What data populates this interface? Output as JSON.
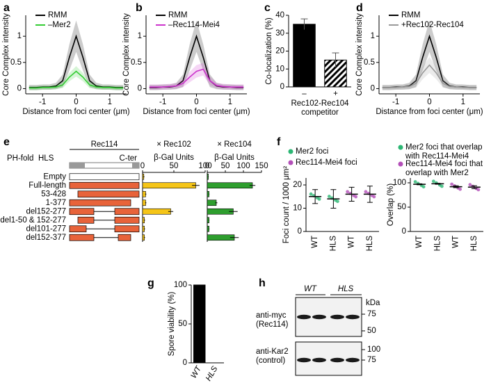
{
  "chart_data": [
    {
      "panel": "a",
      "type": "line",
      "ylabel": "Core Complex intensity",
      "xlabel": "Distance from foci center (μm)",
      "x": [
        -1.4,
        -1.2,
        -1,
        -0.8,
        -0.6,
        -0.4,
        -0.2,
        0,
        0.2,
        0.4,
        0.6,
        0.8,
        1,
        1.2,
        1.4
      ],
      "series": [
        {
          "name": "RMM",
          "color": "#000000",
          "values": [
            0.02,
            0.02,
            0.03,
            0.03,
            0.05,
            0.15,
            0.6,
            1,
            0.6,
            0.15,
            0.05,
            0.03,
            0.03,
            0.02,
            0.02
          ],
          "sd": [
            0.05,
            0.05,
            0.05,
            0.05,
            0.06,
            0.12,
            0.25,
            0.3,
            0.25,
            0.12,
            0.06,
            0.05,
            0.05,
            0.05,
            0.05
          ]
        },
        {
          "name": "–Mer2",
          "color": "#33cc33",
          "values": [
            0.01,
            0.01,
            0.02,
            0.02,
            0.03,
            0.07,
            0.22,
            0.33,
            0.22,
            0.07,
            0.03,
            0.02,
            0.02,
            0.01,
            0.01
          ],
          "sd": [
            0.04,
            0.04,
            0.04,
            0.04,
            0.04,
            0.06,
            0.08,
            0.1,
            0.08,
            0.06,
            0.04,
            0.04,
            0.04,
            0.04,
            0.04
          ]
        }
      ],
      "xlim": [
        -1.5,
        1.5
      ],
      "xticks": [
        -1,
        0,
        1
      ],
      "ylim": [
        -0.1,
        1.4
      ],
      "yticks": [
        0,
        0.5,
        1
      ]
    },
    {
      "panel": "b",
      "type": "line",
      "ylabel": "Core Complex intensity",
      "xlabel": "Distance from foci center (μm)",
      "x": [
        -1.4,
        -1.2,
        -1,
        -0.8,
        -0.6,
        -0.4,
        -0.2,
        0,
        0.2,
        0.4,
        0.6,
        0.8,
        1,
        1.2,
        1.4
      ],
      "series": [
        {
          "name": "RMM",
          "color": "#000000",
          "values": [
            0.02,
            0.02,
            0.03,
            0.03,
            0.05,
            0.15,
            0.6,
            1,
            0.6,
            0.15,
            0.05,
            0.03,
            0.03,
            0.02,
            0.02
          ],
          "sd": [
            0.05,
            0.05,
            0.05,
            0.05,
            0.06,
            0.12,
            0.25,
            0.3,
            0.25,
            0.12,
            0.06,
            0.05,
            0.05,
            0.05,
            0.05
          ]
        },
        {
          "name": "–Rec114-Mei4",
          "color": "#cc33cc",
          "values": [
            0.03,
            0.03,
            0.03,
            0.04,
            0.05,
            0.1,
            0.22,
            0.33,
            0.37,
            0.15,
            0.06,
            0.04,
            0.03,
            0.03,
            0.03
          ],
          "sd": [
            0.05,
            0.05,
            0.05,
            0.05,
            0.05,
            0.07,
            0.1,
            0.12,
            0.12,
            0.08,
            0.05,
            0.05,
            0.05,
            0.05,
            0.05
          ]
        }
      ],
      "xlim": [
        -1.5,
        1.5
      ],
      "xticks": [
        -1,
        0,
        1
      ],
      "ylim": [
        -0.1,
        1.4
      ],
      "yticks": [
        0,
        0.5,
        1
      ]
    },
    {
      "panel": "c",
      "type": "bar",
      "ylabel": "Co-localization (%)",
      "xlabel": "Rec102-Rec104 competitor",
      "categories": [
        "–",
        "+"
      ],
      "values": [
        35,
        15
      ],
      "errors": [
        3,
        4
      ],
      "fills": [
        "solid",
        "hatch"
      ],
      "color": "#000000",
      "ylim": [
        0,
        40
      ],
      "yticks": [
        0,
        10,
        20,
        30,
        40
      ]
    },
    {
      "panel": "d",
      "type": "line",
      "ylabel": "Core Complex intensity",
      "xlabel": "Distance from foci center (μm)",
      "x": [
        -1.4,
        -1.2,
        -1,
        -0.8,
        -0.6,
        -0.4,
        -0.2,
        0,
        0.2,
        0.4,
        0.6,
        0.8,
        1,
        1.2,
        1.4
      ],
      "series": [
        {
          "name": "RMM",
          "color": "#000000",
          "values": [
            0.02,
            0.02,
            0.03,
            0.03,
            0.05,
            0.15,
            0.6,
            1,
            0.6,
            0.15,
            0.05,
            0.03,
            0.03,
            0.02,
            0.02
          ],
          "sd": [
            0.05,
            0.05,
            0.05,
            0.05,
            0.06,
            0.12,
            0.25,
            0.3,
            0.25,
            0.12,
            0.06,
            0.05,
            0.05,
            0.05,
            0.05
          ]
        },
        {
          "name": "+Rec102-Rec104",
          "color": "#999999",
          "values": [
            0.02,
            0.02,
            0.02,
            0.03,
            0.04,
            0.1,
            0.3,
            0.45,
            0.3,
            0.1,
            0.04,
            0.03,
            0.02,
            0.02,
            0.02
          ],
          "sd": [
            0.04,
            0.04,
            0.04,
            0.04,
            0.05,
            0.08,
            0.12,
            0.15,
            0.12,
            0.08,
            0.05,
            0.04,
            0.04,
            0.04,
            0.04
          ]
        }
      ],
      "xlim": [
        -1.5,
        1.5
      ],
      "xticks": [
        -1,
        0,
        1
      ],
      "ylim": [
        -0.1,
        1.4
      ],
      "yticks": [
        0,
        0.5,
        1
      ]
    },
    {
      "panel": "e",
      "type": "hbar",
      "protein": "Rec114",
      "domains": [
        "PH-fold",
        "HLS",
        "C-ter"
      ],
      "title": "× Rec102",
      "xlabel": "β-Gal Units",
      "categories": [
        "Empty",
        "Full-length",
        "53-428",
        "1-377",
        "del152-277",
        "del1-50 & 152-277",
        "del101-277",
        "del152-377"
      ],
      "values": [
        2,
        85,
        5,
        5,
        45,
        3,
        3,
        3
      ],
      "errors": [
        1,
        6,
        1,
        1,
        4,
        1,
        1,
        1
      ],
      "color": "#f5c518",
      "xlim": [
        0,
        100
      ],
      "xticks": [
        0,
        50,
        100
      ]
    },
    {
      "type": "hbar",
      "title": "× Rec104",
      "xlabel": "β-Gal Units",
      "values": [
        3,
        125,
        5,
        25,
        72,
        5,
        5,
        75
      ],
      "errors": [
        1,
        8,
        1,
        3,
        12,
        1,
        1,
        12
      ],
      "color": "#2e9e2e",
      "xlim": [
        0,
        150
      ],
      "xticks": [
        0,
        50,
        100,
        150
      ]
    },
    {
      "panel": "f",
      "type": "dot",
      "ylabel": "Foci count / 1000 μm²",
      "categories": [
        "WT",
        "HLS",
        "WT",
        "HLS"
      ],
      "series": [
        {
          "name": "Mer2 foci",
          "color": "#2bb673",
          "values": [
            15,
            14,
            null,
            null
          ],
          "sd": [
            3,
            4,
            null,
            null
          ]
        },
        {
          "name": "Rec114-Mei4 foci",
          "color": "#b34fb8",
          "values": [
            null,
            null,
            16,
            16
          ],
          "sd": [
            null,
            null,
            3,
            3.5
          ]
        }
      ],
      "ylim": [
        0,
        23
      ],
      "yticks": [
        0,
        10,
        20
      ]
    },
    {
      "type": "dot",
      "ylabel": "Overlap (%)",
      "categories": [
        "WT",
        "HLS",
        "WT",
        "HLS"
      ],
      "series": [
        {
          "name": "Mer2 foci that overlap with Rec114-Mei4",
          "color": "#2bb673",
          "values": [
            97,
            98,
            null,
            null
          ],
          "sd": [
            1,
            1,
            null,
            null
          ]
        },
        {
          "name": "Rec114-Mei4 foci that overlap with Mer2",
          "color": "#b34fb8",
          "values": [
            null,
            null,
            92,
            91
          ],
          "sd": [
            null,
            null,
            2,
            3
          ]
        }
      ],
      "ylim": [
        0,
        110
      ],
      "yticks": [
        0,
        50,
        100
      ]
    },
    {
      "panel": "g",
      "type": "bar",
      "ylabel": "Spore viability (%)",
      "categories": [
        "WT",
        "HLS"
      ],
      "values": [
        100,
        0
      ],
      "color": "#000000",
      "ylim": [
        0,
        100
      ],
      "yticks": [
        0,
        50,
        100
      ]
    }
  ],
  "blot": {
    "panel": "h",
    "lanes": [
      "WT",
      "HLS"
    ],
    "unit": "kDa",
    "blots": [
      {
        "label": "anti-myc (Rec114)",
        "markers": [
          75,
          50
        ]
      },
      {
        "label": "anti-Kar2 (control)",
        "markers": [
          100,
          75
        ]
      }
    ]
  }
}
